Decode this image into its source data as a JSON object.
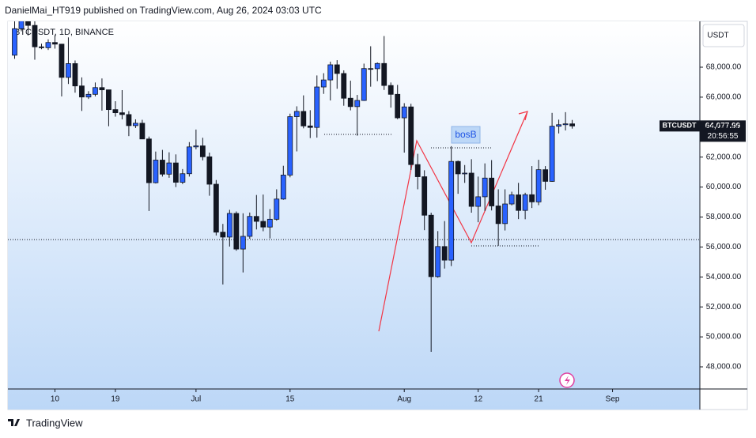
{
  "header": "DanielMai_HT919 published on TradingView.com, Aug 26, 2024 03:03 UTC",
  "footer": "TradingView",
  "chart_data": {
    "type": "candlestick",
    "symbol": "BTCUSDT, 1D, BINANCE",
    "currency": "USDT",
    "ticker": "BTCUSDT",
    "last_price": {
      "value": 64077.99,
      "label": "64,077.99"
    },
    "countdown": "20:56:55",
    "annotation": "bosB",
    "up_color": "#2962ff",
    "down_color": "#131722",
    "ylim": [
      46522,
      71061
    ],
    "yticks": [
      {
        "value": 48000,
        "label": "48,000.00"
      },
      {
        "value": 50000,
        "label": "50,000.00"
      },
      {
        "value": 52000,
        "label": "52,000.00"
      },
      {
        "value": 54000,
        "label": "54,000.00"
      },
      {
        "value": 56000,
        "label": "56,000.00"
      },
      {
        "value": 58000,
        "label": "58,000.00"
      },
      {
        "value": 60000,
        "label": "60,000.00"
      },
      {
        "value": 62000,
        "label": "62,000.00"
      },
      {
        "value": 64000,
        "label": "64,000.00"
      },
      {
        "value": 66000,
        "label": "66,000.00"
      },
      {
        "value": 68000,
        "label": "68,000.00"
      }
    ],
    "xlim": [
      "2024-06-03",
      "2024-09-14"
    ],
    "xticks": [
      {
        "value": "2024-06-10",
        "label": "10"
      },
      {
        "value": "2024-06-19",
        "label": "19"
      },
      {
        "value": "2024-07-01",
        "label": "Jul"
      },
      {
        "value": "2024-07-15",
        "label": "15"
      },
      {
        "value": "2024-08-01",
        "label": "Aug"
      },
      {
        "value": "2024-08-12",
        "label": "12"
      },
      {
        "value": "2024-08-21",
        "label": "21"
      },
      {
        "value": "2024-09-01",
        "label": "Sep"
      }
    ],
    "x": [
      "2024-06-04",
      "2024-06-05",
      "2024-06-06",
      "2024-06-07",
      "2024-06-08",
      "2024-06-09",
      "2024-06-10",
      "2024-06-11",
      "2024-06-12",
      "2024-06-13",
      "2024-06-14",
      "2024-06-15",
      "2024-06-16",
      "2024-06-17",
      "2024-06-18",
      "2024-06-19",
      "2024-06-20",
      "2024-06-21",
      "2024-06-22",
      "2024-06-23",
      "2024-06-24",
      "2024-06-25",
      "2024-06-26",
      "2024-06-27",
      "2024-06-28",
      "2024-06-29",
      "2024-06-30",
      "2024-07-01",
      "2024-07-02",
      "2024-07-03",
      "2024-07-04",
      "2024-07-05",
      "2024-07-06",
      "2024-07-07",
      "2024-07-08",
      "2024-07-09",
      "2024-07-10",
      "2024-07-11",
      "2024-07-12",
      "2024-07-13",
      "2024-07-14",
      "2024-07-15",
      "2024-07-16",
      "2024-07-17",
      "2024-07-18",
      "2024-07-19",
      "2024-07-20",
      "2024-07-21",
      "2024-07-22",
      "2024-07-23",
      "2024-07-24",
      "2024-07-25",
      "2024-07-26",
      "2024-07-27",
      "2024-07-28",
      "2024-07-29",
      "2024-07-30",
      "2024-07-31",
      "2024-08-01",
      "2024-08-02",
      "2024-08-03",
      "2024-08-04",
      "2024-08-05",
      "2024-08-06",
      "2024-08-07",
      "2024-08-08",
      "2024-08-09",
      "2024-08-10",
      "2024-08-11",
      "2024-08-12",
      "2024-08-13",
      "2024-08-14",
      "2024-08-15",
      "2024-08-16",
      "2024-08-17",
      "2024-08-18",
      "2024-08-19",
      "2024-08-20",
      "2024-08-21",
      "2024-08-22",
      "2024-08-23",
      "2024-08-24",
      "2024-08-25",
      "2024-08-26"
    ],
    "open": [
      68800,
      70570,
      71080,
      70790,
      69360,
      69300,
      69650,
      69540,
      67320,
      68240,
      66750,
      66010,
      66190,
      66640,
      66490,
      65170,
      64960,
      64840,
      64100,
      64260,
      63210,
      60290,
      61800,
      60860,
      61610,
      60320,
      60890,
      62680,
      62750,
      62020,
      60190,
      56990,
      56660,
      58240,
      55860,
      56710,
      58040,
      57710,
      57330,
      57850,
      59200,
      60800,
      64700,
      65050,
      64080,
      63980,
      66680,
      67150,
      68160,
      67580,
      65930,
      65370,
      65780,
      67910,
      67900,
      68250,
      66780,
      66190,
      64620,
      65350,
      61500,
      60690,
      58120,
      54020,
      56030,
      55120,
      61710,
      60880,
      60930,
      58710,
      59350,
      60600,
      58740,
      57560,
      58870,
      59480,
      58440,
      59490,
      59010,
      61160,
      60380,
      64060,
      64160,
      64220
    ],
    "high": [
      71060,
      71760,
      71630,
      71980,
      69570,
      69860,
      70150,
      69560,
      69990,
      68450,
      67320,
      66400,
      66980,
      67250,
      66490,
      65730,
      66470,
      65070,
      64520,
      64490,
      63370,
      62370,
      62480,
      62320,
      62180,
      61200,
      63000,
      63840,
      63290,
      62300,
      60470,
      57540,
      58480,
      58370,
      58250,
      58300,
      59470,
      59500,
      58530,
      59850,
      61420,
      64900,
      65390,
      66120,
      65130,
      67450,
      67600,
      68370,
      68470,
      67790,
      67100,
      66150,
      68240,
      69400,
      68320,
      70080,
      66980,
      66820,
      65600,
      65560,
      62220,
      61120,
      58290,
      57060,
      57730,
      62730,
      61770,
      61470,
      61860,
      60700,
      61580,
      61800,
      59850,
      59850,
      59690,
      60280,
      59620,
      61400,
      61820,
      61400,
      64950,
      64500,
      65000,
      64480
    ],
    "low": [
      68560,
      70400,
      70120,
      68500,
      69200,
      69150,
      69240,
      66050,
      66880,
      66300,
      65080,
      65880,
      66050,
      65100,
      64060,
      64700,
      64520,
      63400,
      63940,
      63200,
      58400,
      60240,
      60700,
      60620,
      60000,
      60200,
      60700,
      62520,
      61780,
      59420,
      56770,
      53500,
      56030,
      55750,
      54300,
      56550,
      57170,
      57050,
      56570,
      57760,
      59150,
      60650,
      62380,
      63920,
      63270,
      63300,
      66220,
      65780,
      66560,
      65430,
      65120,
      63430,
      65750,
      66700,
      67070,
      66480,
      65300,
      64530,
      62300,
      61140,
      59850,
      57120,
      49000,
      53950,
      54560,
      54730,
      59550,
      60280,
      58290,
      57650,
      58400,
      58440,
      56080,
      57100,
      58780,
      57860,
      57850,
      58600,
      58790,
      59820,
      60350,
      63580,
      63780,
      63900
    ],
    "close": [
      70570,
      71080,
      70790,
      69360,
      69300,
      69650,
      69540,
      67320,
      68240,
      66750,
      66010,
      66190,
      66640,
      66490,
      65170,
      64960,
      64840,
      64100,
      64260,
      63210,
      60290,
      61800,
      60860,
      61610,
      60320,
      60890,
      62680,
      62750,
      62020,
      60190,
      56990,
      56660,
      58240,
      55860,
      56710,
      58040,
      57710,
      57330,
      57850,
      59200,
      60800,
      64700,
      65050,
      64080,
      63980,
      66680,
      67150,
      68160,
      67580,
      65930,
      65370,
      65780,
      67910,
      67900,
      68250,
      66780,
      66190,
      64620,
      65350,
      61500,
      60690,
      58120,
      54020,
      56030,
      55120,
      61710,
      60880,
      60930,
      58710,
      59350,
      60600,
      58740,
      57560,
      58870,
      59480,
      58440,
      59490,
      59010,
      61160,
      60380,
      64060,
      64160,
      64220,
      64077.99
    ]
  }
}
